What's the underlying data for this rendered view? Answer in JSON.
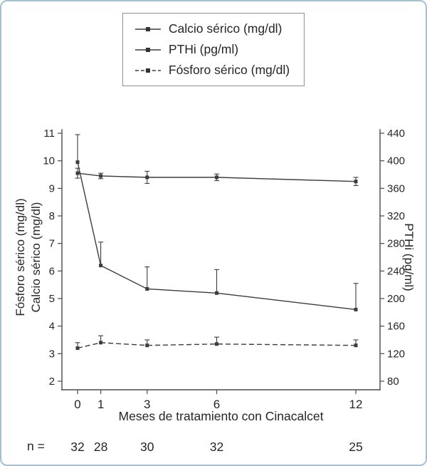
{
  "colors": {
    "line": "#3c3c3c",
    "axis": "#4a4a4a",
    "text": "#262626",
    "card_border": "#a5c0d2",
    "legend_border": "#8f8f8f"
  },
  "legend": {
    "items": [
      {
        "label": "Calcio sérico (mg/dl)",
        "line_style": "solid",
        "marker": "square"
      },
      {
        "label": "PTHi (pg/ml)",
        "line_style": "solid",
        "marker": "square"
      },
      {
        "label": "Fósforo sérico (mg/dl)",
        "line_style": "dashed",
        "marker": "square"
      }
    ]
  },
  "chart_data": {
    "type": "line",
    "title": "",
    "xlabel": "Meses de tratamiento con Cinacalcet",
    "ylabel_left_lines": [
      "Fósforo sérico (mg/dl)",
      "Calcio sérico (mg/dl)"
    ],
    "ylabel_right": "PTHi (pg/ml)",
    "x": [
      0,
      1,
      3,
      6,
      12
    ],
    "x_ticks": [
      0,
      1,
      3,
      6,
      12
    ],
    "ylim_left": [
      2,
      11
    ],
    "yticks_left": [
      2,
      3,
      4,
      5,
      6,
      7,
      8,
      9,
      10,
      11
    ],
    "ylim_right": [
      80,
      440
    ],
    "yticks_right": [
      80,
      120,
      160,
      200,
      240,
      280,
      320,
      360,
      400,
      440
    ],
    "grid": false,
    "legend_position": "top-center",
    "series": [
      {
        "id": "calcio-serico",
        "name": "Calcio sérico (mg/dl)",
        "axis": "left",
        "style": "solid",
        "marker": "square",
        "error_dir": "both",
        "values": [
          9.55,
          9.45,
          9.4,
          9.4,
          9.25
        ],
        "errors": [
          0.18,
          0.1,
          0.22,
          0.12,
          0.15
        ]
      },
      {
        "id": "pthi",
        "name": "PTHi (pg/ml)",
        "axis": "right",
        "style": "solid",
        "marker": "square",
        "error_dir": "up",
        "values": [
          398,
          248,
          214,
          208,
          184
        ],
        "errors": [
          40,
          34,
          32,
          34,
          38
        ]
      },
      {
        "id": "fosforo-serico",
        "name": "Fósforo sérico (mg/dl)",
        "axis": "left",
        "style": "dashed",
        "marker": "square",
        "error_dir": "up",
        "values": [
          3.2,
          3.4,
          3.3,
          3.35,
          3.3
        ],
        "errors": [
          0.2,
          0.25,
          0.2,
          0.25,
          0.2
        ]
      }
    ],
    "n_row": {
      "label": "n =",
      "values": [
        32,
        28,
        30,
        32,
        25
      ]
    }
  }
}
